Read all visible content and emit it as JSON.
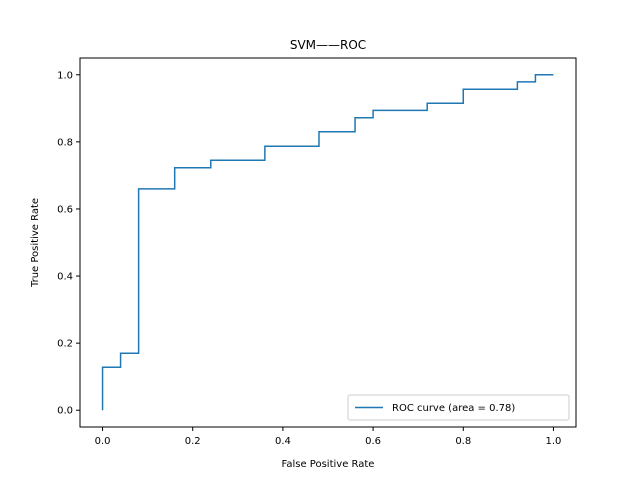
{
  "chart_data": {
    "type": "line",
    "title": "SVM——ROC",
    "xlabel": "False Positive Rate",
    "ylabel": "True Positive Rate",
    "xlim": [
      -0.05,
      1.05
    ],
    "ylim": [
      -0.05,
      1.05
    ],
    "xticks": [
      0.0,
      0.2,
      0.4,
      0.6,
      0.8,
      1.0
    ],
    "xtick_labels": [
      "0.0",
      "0.2",
      "0.4",
      "0.6",
      "0.8",
      "1.0"
    ],
    "yticks": [
      0.0,
      0.2,
      0.4,
      0.6,
      0.8,
      1.0
    ],
    "ytick_labels": [
      "0.0",
      "0.2",
      "0.4",
      "0.6",
      "0.8",
      "1.0"
    ],
    "grid": false,
    "legend_position": "lower-right",
    "series": [
      {
        "name": "ROC curve (area = 0.78)",
        "color": "#1f77b4",
        "x": [
          0.0,
          0.0,
          0.04,
          0.04,
          0.08,
          0.08,
          0.16,
          0.16,
          0.24,
          0.24,
          0.36,
          0.36,
          0.48,
          0.48,
          0.56,
          0.56,
          0.6,
          0.6,
          0.72,
          0.72,
          0.8,
          0.8,
          0.92,
          0.92,
          0.96,
          0.96,
          1.0
        ],
        "y": [
          0.0,
          0.128,
          0.128,
          0.17,
          0.17,
          0.66,
          0.66,
          0.723,
          0.723,
          0.745,
          0.745,
          0.787,
          0.787,
          0.83,
          0.83,
          0.872,
          0.872,
          0.894,
          0.894,
          0.915,
          0.915,
          0.957,
          0.957,
          0.979,
          0.979,
          1.0,
          1.0
        ]
      }
    ]
  }
}
